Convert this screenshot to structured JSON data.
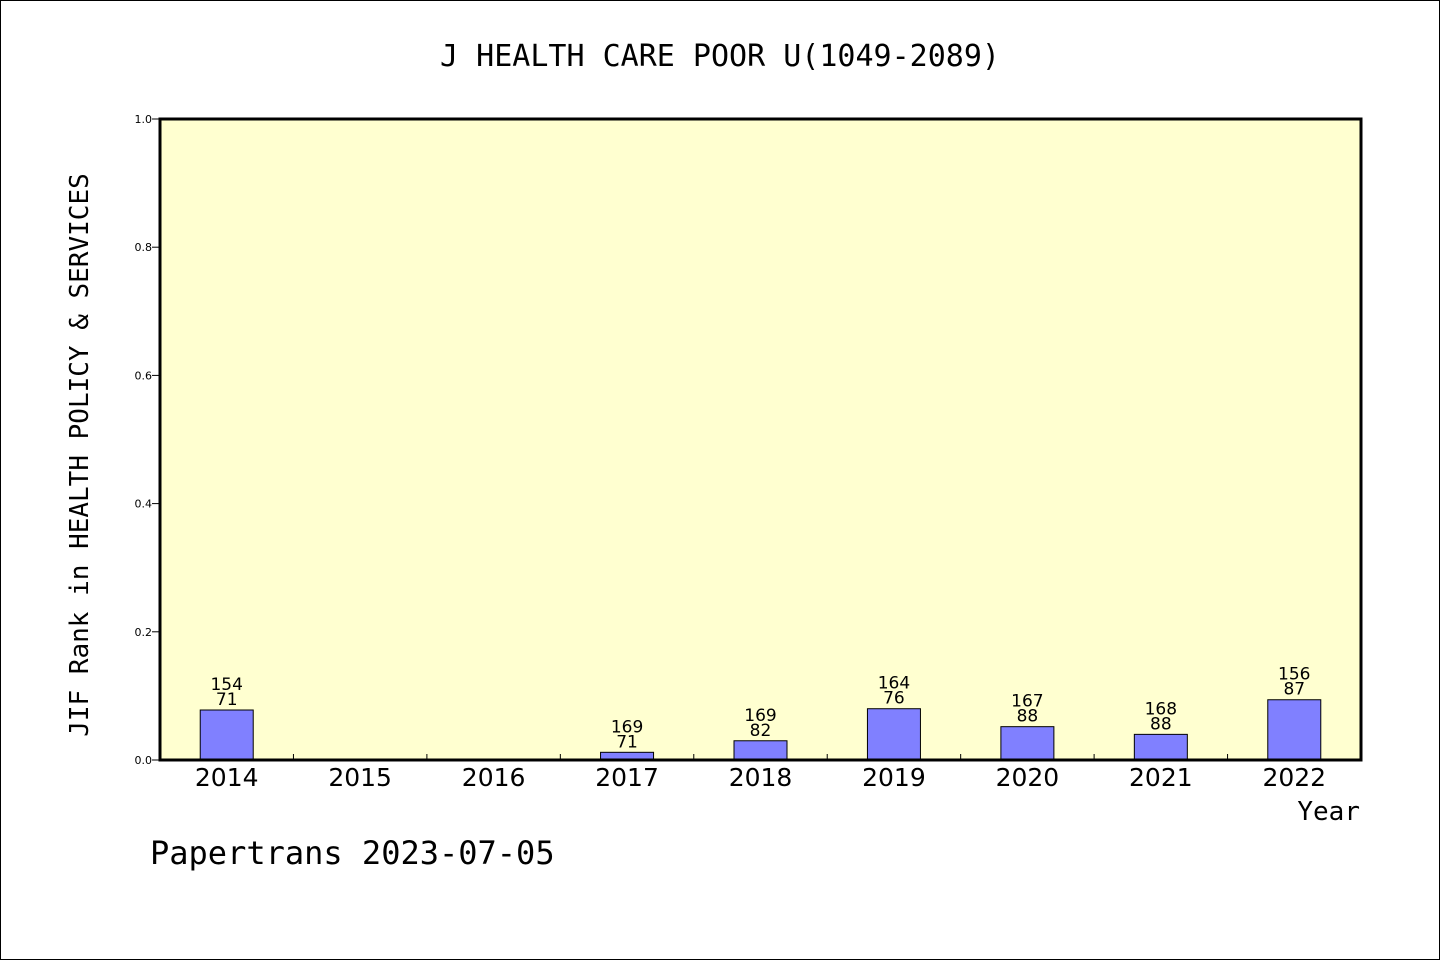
{
  "chart_data": {
    "type": "bar",
    "title": "J HEALTH CARE POOR U(1049-2089)",
    "xlabel": "Year",
    "ylabel": "JIF Rank in HEALTH POLICY & SERVICES",
    "ylim": [
      0,
      1.0
    ],
    "yticks": [
      "0.0",
      "0.2",
      "0.4",
      "0.6",
      "0.8",
      "1.0"
    ],
    "categories": [
      "2014",
      "2015",
      "2016",
      "2017",
      "2018",
      "2019",
      "2020",
      "2021",
      "2022"
    ],
    "values": [
      0.078,
      0,
      0,
      0.012,
      0.03,
      0.08,
      0.052,
      0.04,
      0.094
    ],
    "labels_total": [
      "154",
      "",
      "",
      "169",
      "169",
      "164",
      "167",
      "168",
      "156"
    ],
    "labels_rank": [
      "71",
      "",
      "",
      "71",
      "82",
      "76",
      "88",
      "88",
      "87"
    ],
    "bar_color": "#8080ff",
    "plot_bg": "#ffffd0",
    "grid": false
  },
  "footer": {
    "text": "Papertrans 2023-07-05"
  }
}
